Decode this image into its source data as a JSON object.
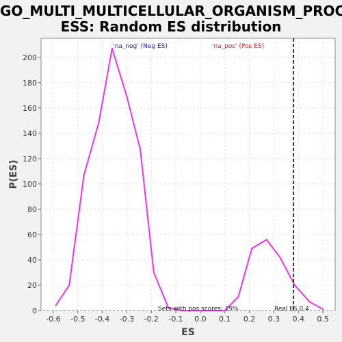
{
  "chart_data": {
    "type": "line",
    "title_lines": [
      "GO_MULTI_MULTICELLULAR_ORGANISM_PROC",
      "ESS: Random ES distribution"
    ],
    "xlabel": "ES",
    "ylabel": "P(ES)",
    "xlim": [
      -0.65,
      0.55
    ],
    "ylim": [
      0,
      215
    ],
    "xticks": [
      -0.6,
      -0.5,
      -0.4,
      -0.3,
      -0.2,
      -0.1,
      0.0,
      0.1,
      0.2,
      0.3,
      0.4,
      0.5
    ],
    "xtick_labels": [
      "-0.6",
      "-0.5",
      "-0.4",
      "-0.3",
      "-0.2",
      "-0.1",
      "0.0",
      "0.1",
      "0.2",
      "0.3",
      "0.4",
      "0.5"
    ],
    "yticks": [
      0,
      20,
      40,
      60,
      80,
      100,
      120,
      140,
      160,
      180,
      200
    ],
    "ytick_labels": [
      "0",
      "20",
      "40",
      "60",
      "80",
      "100",
      "120",
      "140",
      "160",
      "180",
      "200"
    ],
    "grid": true,
    "series": [
      {
        "color": "#ee33ee",
        "x": [
          -0.59,
          -0.535,
          -0.475,
          -0.415,
          -0.36,
          -0.3,
          -0.245,
          -0.19,
          -0.13,
          -0.075,
          -0.015,
          0.04,
          0.1,
          0.155,
          0.21,
          0.27,
          0.325,
          0.385,
          0.445,
          0.5
        ],
        "y": [
          4,
          20,
          107,
          148,
          207,
          169,
          127,
          30,
          2,
          0,
          0,
          0,
          0,
          11,
          49,
          56,
          42,
          20,
          7,
          1
        ]
      }
    ],
    "real_es": 0.38,
    "legend": {
      "neg_label": "'na_neg' (Neg ES)",
      "neg_color": "#2222cc",
      "pos_label": "'na_pos' (Pos ES)",
      "pos_color": "#dd2222"
    },
    "annotations": {
      "pos_scores": "Sets with pos scores: 19%",
      "real_es": "Real ES 0.4"
    }
  }
}
